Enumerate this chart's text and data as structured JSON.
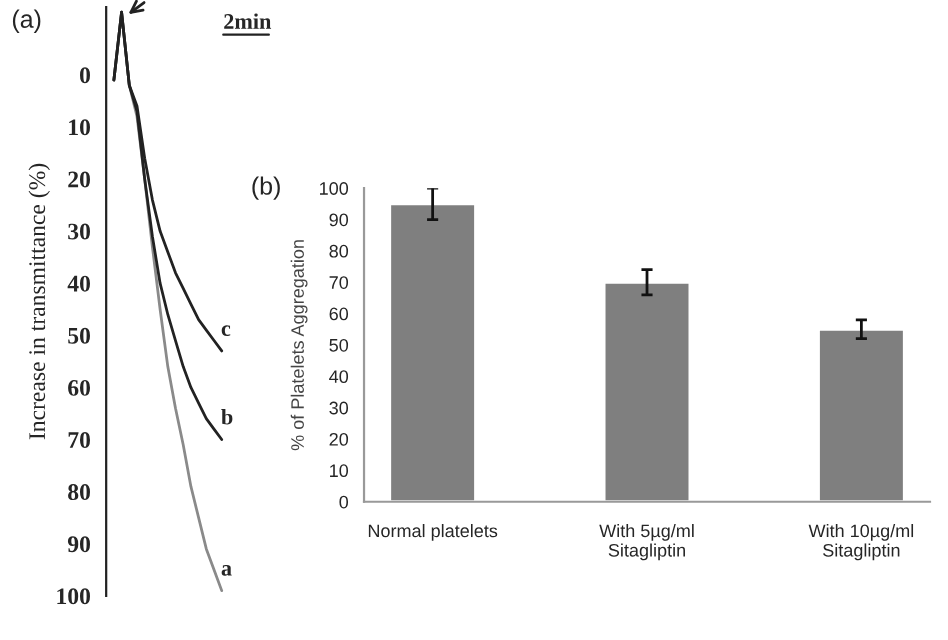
{
  "chart_data": [
    {
      "type": "line",
      "title": "(a)",
      "ylabel": "Increase in transmittance (%)",
      "categories": [
        null,
        null,
        null,
        null,
        null,
        null,
        null,
        null,
        null,
        null,
        null,
        null,
        null,
        null,
        null
      ],
      "ylim": [
        100,
        -13
      ],
      "yticks": [
        0,
        10,
        20,
        30,
        40,
        50,
        60,
        70,
        80,
        90,
        100
      ],
      "tick_labels": "y",
      "line_style": "solid",
      "annotations": [
        "2min"
      ],
      "series": [
        {
          "name": "a",
          "color": "#8a8a8a",
          "values": [
            1,
            -12,
            2,
            8,
            20,
            33,
            45,
            56,
            64,
            71,
            79,
            85,
            91,
            95,
            99
          ]
        },
        {
          "name": "b",
          "color": "#222222",
          "values": [
            1,
            -12,
            2,
            7,
            20,
            31,
            40,
            46,
            51,
            56,
            60,
            63,
            66,
            68,
            70
          ]
        },
        {
          "name": "c",
          "color": "#222222",
          "values": [
            1,
            -12,
            2,
            6,
            16,
            24,
            30,
            34,
            38,
            41,
            44,
            47,
            49,
            51,
            53
          ]
        }
      ]
    },
    {
      "type": "bar",
      "title": "(b)",
      "ylabel": "% of Platelets Aggregation",
      "categories": [
        "Normal platelets",
        "With 5µg/ml\nSitagliptin",
        "With 10µg/ml\nSitagliptin"
      ],
      "values": [
        95,
        70,
        55
      ],
      "errors": [
        5,
        4,
        3
      ],
      "color": "#7f7f7f",
      "ylim": [
        0,
        100
      ],
      "yticks": [
        0,
        10,
        20,
        30,
        40,
        50,
        60,
        70,
        80,
        90,
        100
      ]
    }
  ]
}
